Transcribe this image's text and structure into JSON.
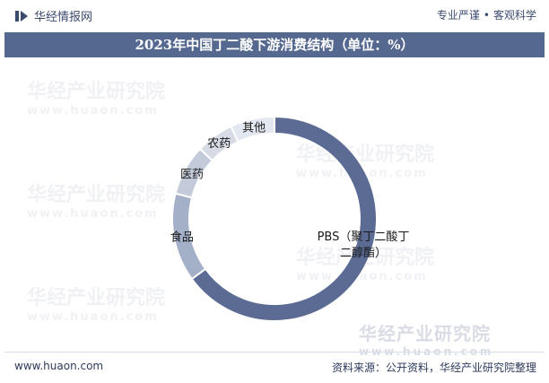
{
  "header": {
    "brand": "华经情报网",
    "slogan_left": "专业严谨",
    "slogan_sep": "•",
    "slogan_right": "客观科学"
  },
  "title": "2023年中国丁二酸下游消费结构（单位：%）",
  "watermark": {
    "cn": "华经产业研究院",
    "en": "www.huaon.com"
  },
  "footer": {
    "site": "www.huaon.com",
    "source": "资料来源：公开资料，华经产业研究院整理"
  },
  "chart_data": {
    "type": "pie",
    "style": "donut",
    "categories": [
      "PBS（聚丁二酸丁二醇酯）",
      "食品",
      "医药",
      "农药",
      "其他"
    ],
    "values": [
      65,
      14,
      8,
      6,
      7
    ],
    "colors": [
      "#5b6b94",
      "#a4afc8",
      "#c3cad9",
      "#d6dbe6",
      "#e3e7ef"
    ],
    "title": "2023年中国丁二酸下游消费结构（单位：%）"
  }
}
